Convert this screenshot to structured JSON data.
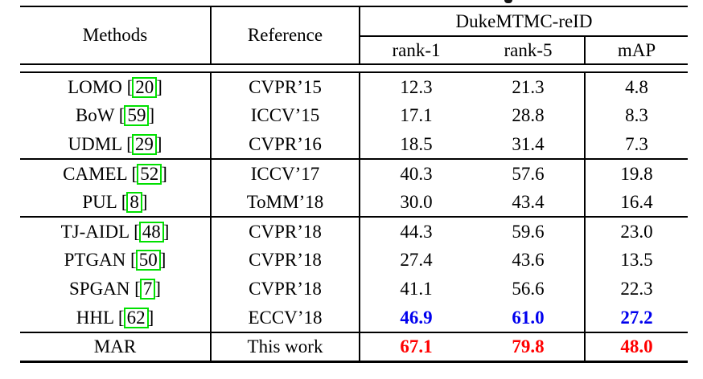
{
  "page": {
    "background": "#FFFFFF"
  },
  "table": {
    "headers": {
      "methods": "Methods",
      "reference": "Reference",
      "dataset": "DukeMTMC-reID",
      "metrics": [
        "rank-1",
        "rank-5",
        "mAP"
      ]
    },
    "citation_brackets": [
      "[",
      "]"
    ],
    "rows": [
      {
        "method": "LOMO",
        "cite": "20",
        "reference": "CVPR’15",
        "values": [
          "12.3",
          "21.3",
          "4.8"
        ],
        "highlight": "none",
        "group_end": false
      },
      {
        "method": "BoW",
        "cite": "59",
        "reference": "ICCV’15",
        "values": [
          "17.1",
          "28.8",
          "8.3"
        ],
        "highlight": "none",
        "group_end": false
      },
      {
        "method": "UDML",
        "cite": "29",
        "reference": "CVPR’16",
        "values": [
          "18.5",
          "31.4",
          "7.3"
        ],
        "highlight": "none",
        "group_end": true
      },
      {
        "method": "CAMEL",
        "cite": "52",
        "reference": "ICCV’17",
        "values": [
          "40.3",
          "57.6",
          "19.8"
        ],
        "highlight": "none",
        "group_end": false
      },
      {
        "method": "PUL",
        "cite": "8",
        "reference": "ToMM’18",
        "values": [
          "30.0",
          "43.4",
          "16.4"
        ],
        "highlight": "none",
        "group_end": true
      },
      {
        "method": "TJ-AIDL",
        "cite": "48",
        "reference": "CVPR’18",
        "values": [
          "44.3",
          "59.6",
          "23.0"
        ],
        "highlight": "none",
        "group_end": false
      },
      {
        "method": "PTGAN",
        "cite": "50",
        "reference": "CVPR’18",
        "values": [
          "27.4",
          "43.6",
          "13.5"
        ],
        "highlight": "none",
        "group_end": false
      },
      {
        "method": "SPGAN",
        "cite": "7",
        "reference": "CVPR’18",
        "values": [
          "41.1",
          "56.6",
          "22.3"
        ],
        "highlight": "none",
        "group_end": false
      },
      {
        "method": "HHL",
        "cite": "62",
        "reference": "ECCV’18",
        "values": [
          "46.9",
          "61.0",
          "27.2"
        ],
        "highlight": "blue",
        "group_end": true
      },
      {
        "method": "MAR",
        "cite": null,
        "reference": "This work",
        "values": [
          "67.1",
          "79.8",
          "48.0"
        ],
        "highlight": "red",
        "group_end": false
      }
    ],
    "colors": {
      "best_value": "#FF0000",
      "second_best_value": "#0000EE",
      "citation_box": "#00E000",
      "rule": "#000000"
    }
  }
}
